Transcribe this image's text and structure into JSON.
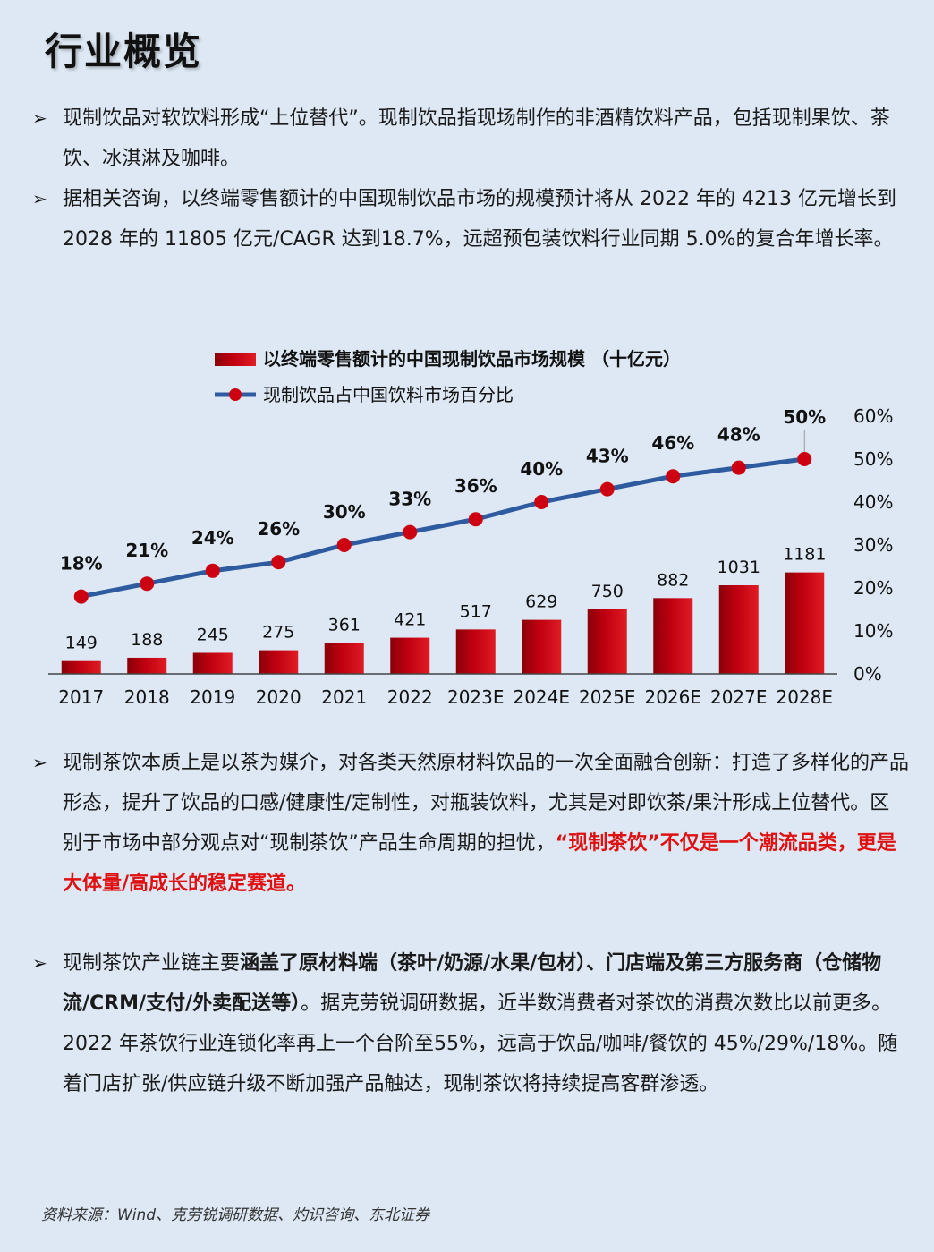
{
  "title": "行业概览",
  "bullet_marker": "➢",
  "bullets": [
    {
      "text": "现制饮品对软饮料形成“上位替代”。现制饮品指现场制作的非酒精饮料产品，包括现制果饮、茶饮、冰淇淋及咖啡。"
    },
    {
      "text": "据相关咨询，以终端零售额计的中国现制饮品市场的规模预计将从 2022 年的 4213 亿元增长到 2028 年的 11805 亿元/CAGR 达到18.7%，远超预包装饮料行业同期 5.0%的复合年增长率。"
    },
    {
      "text": "现制茶饮本质上是以茶为媒介，对各类天然原材料饮品的一次全面融合创新：打造了多样化的产品形态，提升了饮品的口感/健康性/定制性，对瓶装饮料，尤其是对即饮茶/果汁形成上位替代。区别于市场中部分观点对“现制茶饮”产品生命周期的担忧，",
      "highlight": "“现制茶饮”不仅是一个潮流品类，更是大体量/高成长的稳定赛道。"
    },
    {
      "pre": "现制茶饮产业链主要",
      "bold": "涵盖了原材料端（茶叶/奶源/水果/包材）、门店端及第三方服务商（仓储物流/CRM/支付/外卖配送等）",
      "post": "。据克劳锐调研数据，近半数消费者对茶饮的消费次数比以前更多。2022 年茶饮行业连锁化率再上一个台阶至55%，远高于饮品/咖啡/餐饮的 45%/29%/18%。随着门店扩张/供应链升级不断加强产品触达，现制茶饮将持续提高客群渗透。"
    }
  ],
  "source": "资料来源：Wind、克劳锐调研数据、灼识咨询、东北证券",
  "colors": {
    "bar": "#c00010",
    "line": "#2e5aa0",
    "dot": "#cc0010",
    "highlight": "#e01010"
  },
  "chart_data": {
    "type": "bar",
    "categories": [
      "2017",
      "2018",
      "2019",
      "2020",
      "2021",
      "2022",
      "2023E",
      "2024E",
      "2025E",
      "2026E",
      "2027E",
      "2028E"
    ],
    "series": [
      {
        "name": "以终端零售额计的中国现制饮品市场规模 （十亿元）",
        "type": "bar",
        "axis": "left",
        "values": [
          149,
          188,
          245,
          275,
          361,
          421,
          517,
          629,
          750,
          882,
          1031,
          1181
        ]
      },
      {
        "name": "现制饮品占中国饮料市场百分比",
        "type": "line",
        "axis": "right",
        "values": [
          18,
          21,
          24,
          26,
          30,
          33,
          36,
          40,
          43,
          46,
          48,
          50
        ]
      }
    ],
    "bar_labels": [
      "149",
      "188",
      "245",
      "275",
      "361",
      "421",
      "517",
      "629",
      "750",
      "882",
      "1031",
      "1181"
    ],
    "line_labels": [
      "18%",
      "21%",
      "24%",
      "26%",
      "30%",
      "33%",
      "36%",
      "40%",
      "43%",
      "46%",
      "48%",
      "50%"
    ],
    "left_ylim": [
      0,
      3000
    ],
    "right_ylim": [
      0,
      60
    ],
    "right_ticks": [
      "0%",
      "10%",
      "20%",
      "30%",
      "40%",
      "50%",
      "60%"
    ],
    "legend_position": "top"
  }
}
